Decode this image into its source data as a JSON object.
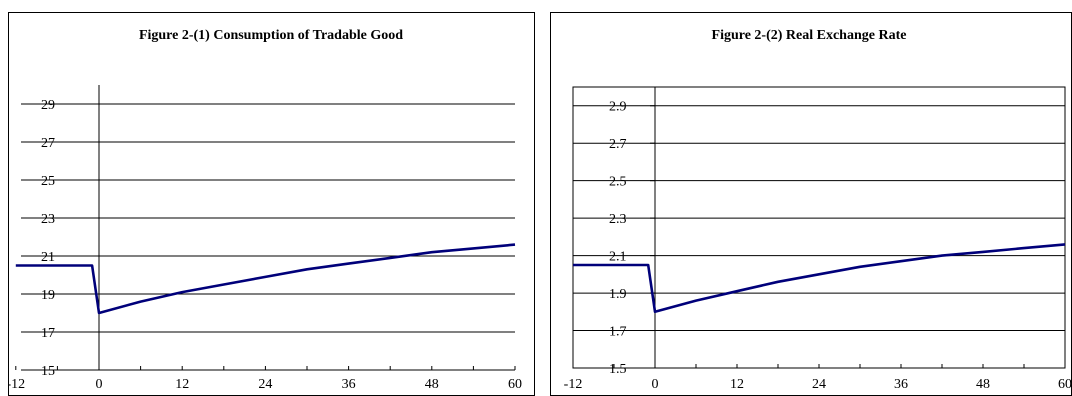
{
  "chart_data": [
    {
      "type": "line",
      "title": "Figure 2-(1)  Consumption of Tradable Good",
      "xlabel": "",
      "ylabel": "",
      "xlim": [
        -12,
        60
      ],
      "ylim": [
        15,
        30
      ],
      "xticks": [
        -12,
        0,
        12,
        24,
        36,
        48,
        60
      ],
      "yticks": [
        15,
        17,
        19,
        21,
        23,
        25,
        27,
        29
      ],
      "ytick_labels": [
        "15",
        "17",
        "19",
        "21",
        "23",
        "25",
        "27",
        "29"
      ],
      "grid": "horizontal",
      "legend": "none",
      "color": "#00007a",
      "series": [
        {
          "x": [
            -12,
            -1,
            0,
            6,
            12,
            18,
            24,
            30,
            36,
            42,
            48,
            54,
            60
          ],
          "values": [
            20.5,
            20.5,
            18.0,
            18.6,
            19.1,
            19.5,
            19.9,
            20.3,
            20.6,
            20.9,
            21.2,
            21.4,
            21.6
          ]
        }
      ]
    },
    {
      "type": "line",
      "title": "Figure 2-(2)  Real Exchange Rate",
      "xlabel": "",
      "ylabel": "",
      "xlim": [
        -12,
        60
      ],
      "ylim": [
        1.5,
        3.0
      ],
      "xticks": [
        -12,
        0,
        12,
        24,
        36,
        48,
        60
      ],
      "yticks": [
        1.5,
        1.7,
        1.9,
        2.1,
        2.3,
        2.5,
        2.7,
        2.9
      ],
      "ytick_labels": [
        "1.5",
        "1.7",
        "1.9",
        "2.1",
        "2.3",
        "2.5",
        "2.7",
        "2.9"
      ],
      "grid": "horizontal",
      "legend": "none",
      "color": "#00007a",
      "series": [
        {
          "x": [
            -12,
            -1,
            0,
            6,
            12,
            18,
            24,
            30,
            36,
            42,
            48,
            54,
            60
          ],
          "values": [
            2.05,
            2.05,
            1.8,
            1.86,
            1.91,
            1.96,
            2.0,
            2.04,
            2.07,
            2.1,
            2.12,
            2.14,
            2.16
          ]
        }
      ]
    }
  ]
}
